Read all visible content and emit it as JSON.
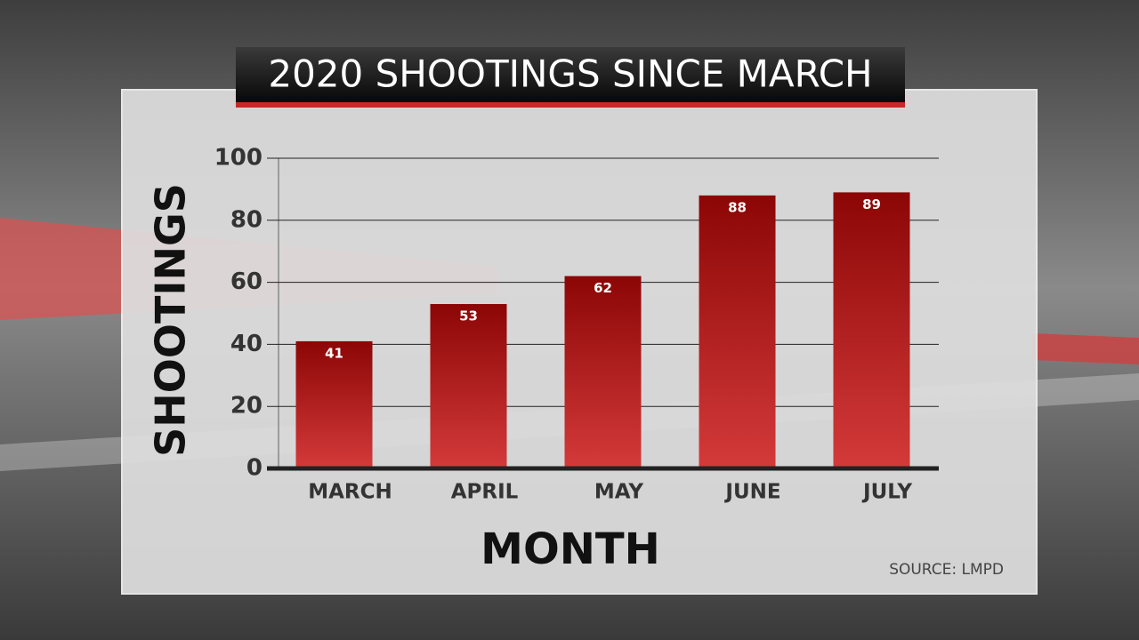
{
  "chart_data": {
    "type": "bar",
    "title": "2020 SHOOTINGS SINCE MARCH",
    "y_label": "SHOOTINGS",
    "x_label": "MONTH",
    "source": "SOURCE: LMPD",
    "categories": [
      "MARCH",
      "APRIL",
      "MAY",
      "JUNE",
      "JULY"
    ],
    "values": [
      41,
      53,
      62,
      88,
      89
    ],
    "color": "#b01c1c",
    "ylim": [
      0,
      100
    ],
    "yticks": [
      0,
      20,
      40,
      60,
      80,
      100
    ],
    "grid": true
  }
}
